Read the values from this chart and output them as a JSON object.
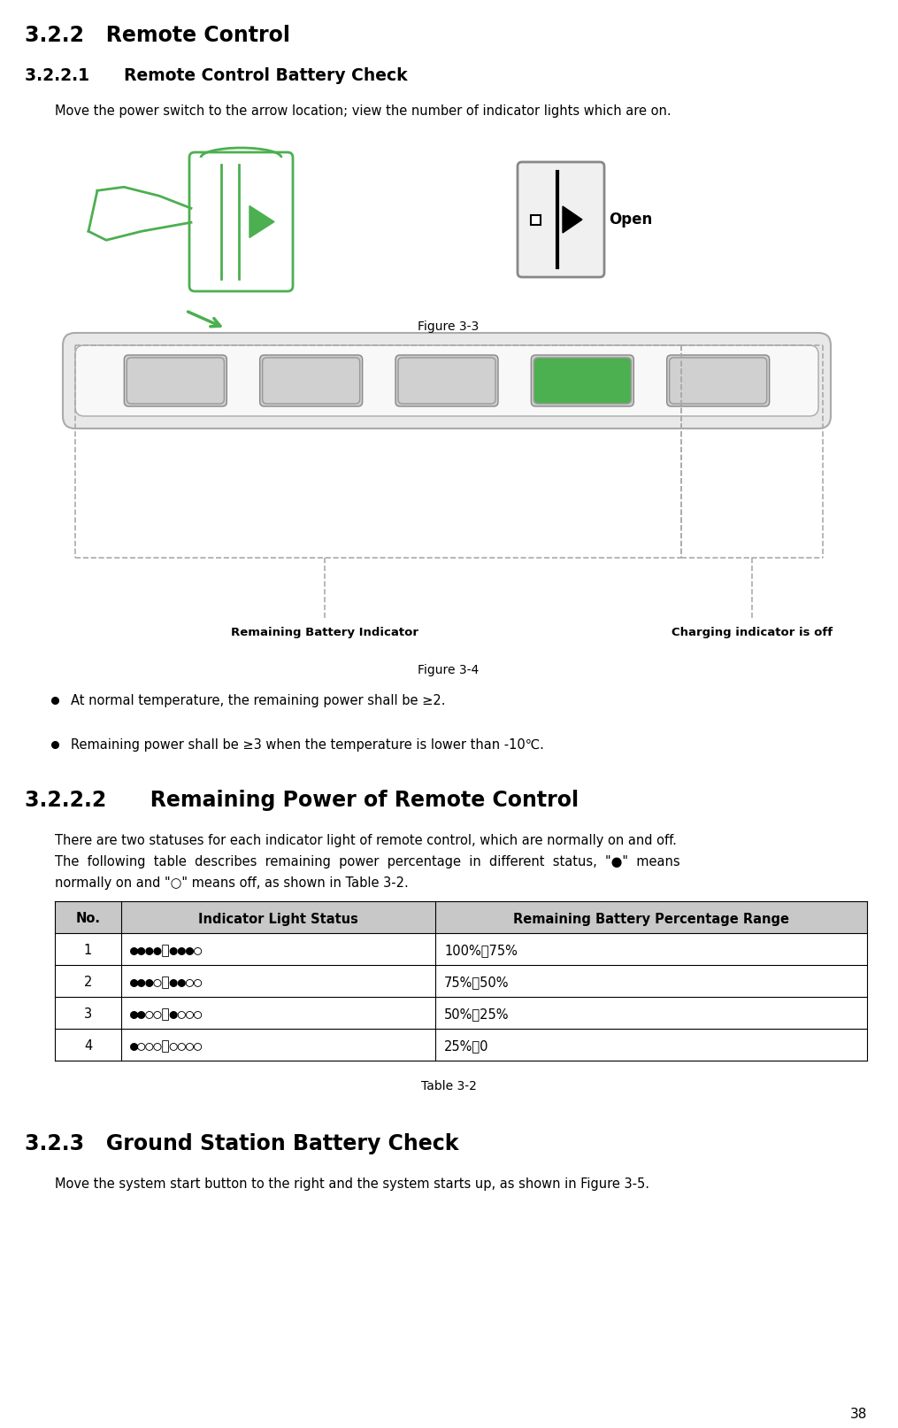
{
  "title_322": "3.2.2   Remote Control",
  "title_3221": "3.2.2.1      Remote Control Battery Check",
  "body_3221": "Move the power switch to the arrow location; view the number of indicator lights which are on.",
  "fig33_caption": "Figure 3-3",
  "fig34_caption": "Figure 3-4",
  "bullet1": "At normal temperature, the remaining power shall be ≥2.",
  "bullet2": "Remaining power shall be ≥3 when the temperature is lower than -10℃.",
  "title_3222": "3.2.2.2      Remaining Power of Remote Control",
  "body_3222_line1": "There are two statuses for each indicator light of remote control, which are normally on and off.",
  "body_3222_line2": "The  following  table  describes  remaining  power  percentage  in  different  status,  \"●\"  means",
  "body_3222_line3": "normally on and \"○\" means off, as shown in Table 3-2.",
  "table_headers": [
    "No.",
    "Indicator Light Status",
    "Remaining Battery Percentage Range"
  ],
  "table_rows": [
    [
      "1",
      "●●●●～●●●○",
      "100%～75%"
    ],
    [
      "2",
      "●●●○～●●○○",
      "75%～50%"
    ],
    [
      "3",
      "●●○○～●○○○",
      "50%～25%"
    ],
    [
      "4",
      "●○○○～○○○○",
      "25%～0"
    ]
  ],
  "table_caption": "Table 3-2",
  "title_323": "3.2.3   Ground Station Battery Check",
  "body_323": "Move the system start button to the right and the system starts up, as shown in Figure 3-5.",
  "page_number": "38",
  "bg_color": "#ffffff",
  "text_color": "#000000",
  "table_header_bg": "#c8c8c8",
  "table_border_color": "#000000",
  "fig34_label_left": "Remaining Battery Indicator",
  "fig34_label_right": "Charging indicator is off",
  "green_color": "#4CAF50",
  "gray_color": "#aaaaaa",
  "light_gray": "#cccccc",
  "dark_gray": "#555555"
}
